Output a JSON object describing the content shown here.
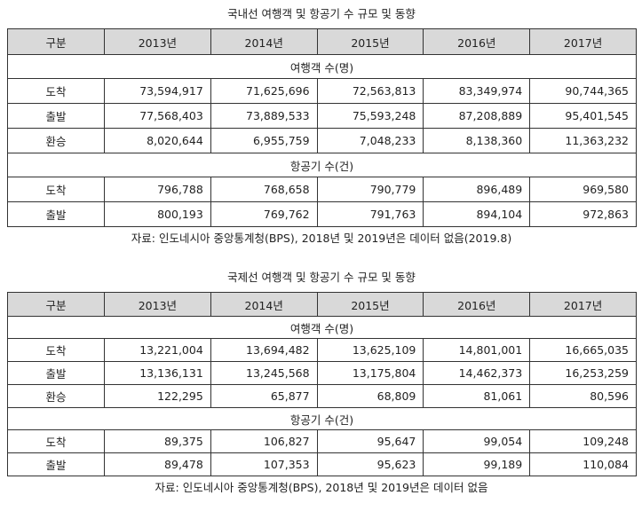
{
  "tables": [
    {
      "title": "국내선 여행객 및 항공기 수 규모 및 동향",
      "header": [
        "구분",
        "2013년",
        "2014년",
        "2015년",
        "2016년",
        "2017년"
      ],
      "sections": [
        {
          "label": "여행객 수(명)",
          "rows": [
            {
              "label": "도착",
              "values": [
                "73,594,917",
                "71,625,696",
                "72,563,813",
                "83,349,974",
                "90,744,365"
              ]
            },
            {
              "label": "출발",
              "values": [
                "77,568,403",
                "73,889,533",
                "75,593,248",
                "87,208,889",
                "95,401,545"
              ]
            },
            {
              "label": "환승",
              "values": [
                "8,020,644",
                "6,955,759",
                "7,048,233",
                "8,138,360",
                "11,363,232"
              ]
            }
          ]
        },
        {
          "label": "항공기 수(건)",
          "rows": [
            {
              "label": "도착",
              "values": [
                "796,788",
                "768,658",
                "790,779",
                "896,489",
                "969,580"
              ]
            },
            {
              "label": "출발",
              "values": [
                "800,193",
                "769,762",
                "791,763",
                "894,104",
                "972,863"
              ]
            }
          ]
        }
      ],
      "source": "자료: 인도네시아 중앙통계청(BPS), 2018년 및 2019년은 데이터 없음(2019.8)"
    },
    {
      "title": "국제선 여행객 및 항공기 수 규모 및 동향",
      "header": [
        "구분",
        "2013년",
        "2014년",
        "2015년",
        "2016년",
        "2017년"
      ],
      "sections": [
        {
          "label": "여행객 수(명)",
          "rows": [
            {
              "label": "도착",
              "values": [
                "13,221,004",
                "13,694,482",
                "13,625,109",
                "14,801,001",
                "16,665,035"
              ]
            },
            {
              "label": "출발",
              "values": [
                "13,136,131",
                "13,245,568",
                "13,175,804",
                "14,462,373",
                "16,253,259"
              ]
            },
            {
              "label": "환승",
              "values": [
                "122,295",
                "65,877",
                "68,809",
                "81,061",
                "80,596"
              ]
            }
          ]
        },
        {
          "label": "항공기 수(건)",
          "rows": [
            {
              "label": "도착",
              "values": [
                "89,375",
                "106,827",
                "95,647",
                "99,054",
                "109,248"
              ]
            },
            {
              "label": "출발",
              "values": [
                "89,478",
                "107,353",
                "95,623",
                "99,189",
                "110,084"
              ]
            }
          ]
        }
      ],
      "source": "자료: 인도네시아 중앙통계청(BPS), 2018년 및 2019년은 데이터 없음"
    }
  ]
}
